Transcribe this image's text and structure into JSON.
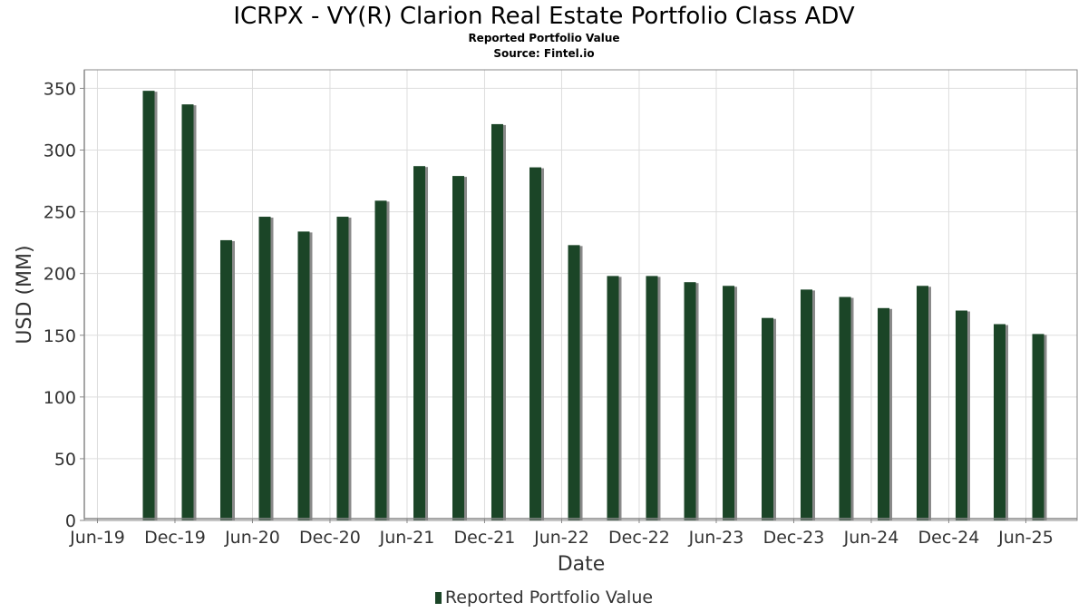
{
  "colors": {
    "bar": "#1b4527",
    "shadow": "#8a8a8a",
    "grid": "#dddddd",
    "axis": "#888888",
    "text": "#333333"
  },
  "chart_data": {
    "type": "bar",
    "title": "ICRPX - VY(R) Clarion Real Estate Portfolio Class ADV",
    "subtitle": "Reported Portfolio Value",
    "source": "Source: Fintel.io",
    "xlabel": "Date",
    "ylabel": "USD (MM)",
    "ylim": [
      0,
      365
    ],
    "yticks": [
      0,
      50,
      100,
      150,
      200,
      250,
      300,
      350
    ],
    "grid": true,
    "legend_position": "bottom-center",
    "xlim": [
      "2019-05-01",
      "2025-09-30"
    ],
    "xticks": [
      {
        "date": "2019-06-01",
        "label": "Jun-19"
      },
      {
        "date": "2019-12-01",
        "label": "Dec-19"
      },
      {
        "date": "2020-06-01",
        "label": "Jun-20"
      },
      {
        "date": "2020-12-01",
        "label": "Dec-20"
      },
      {
        "date": "2021-06-01",
        "label": "Jun-21"
      },
      {
        "date": "2021-12-01",
        "label": "Dec-21"
      },
      {
        "date": "2022-06-01",
        "label": "Jun-22"
      },
      {
        "date": "2022-12-01",
        "label": "Dec-22"
      },
      {
        "date": "2023-06-01",
        "label": "Jun-23"
      },
      {
        "date": "2023-12-01",
        "label": "Dec-23"
      },
      {
        "date": "2024-06-01",
        "label": "Jun-24"
      },
      {
        "date": "2024-12-01",
        "label": "Dec-24"
      },
      {
        "date": "2025-06-01",
        "label": "Jun-25"
      }
    ],
    "series": [
      {
        "name": "Reported Portfolio Value",
        "x": [
          "2019-09-30",
          "2019-12-31",
          "2020-03-31",
          "2020-06-30",
          "2020-09-30",
          "2020-12-31",
          "2021-03-31",
          "2021-06-30",
          "2021-09-30",
          "2021-12-31",
          "2022-03-31",
          "2022-06-30",
          "2022-09-30",
          "2022-12-31",
          "2023-03-31",
          "2023-06-30",
          "2023-09-30",
          "2023-12-31",
          "2024-03-31",
          "2024-06-30",
          "2024-09-30",
          "2024-12-31",
          "2025-03-31",
          "2025-06-30"
        ],
        "values": [
          348,
          337,
          227,
          246,
          234,
          246,
          259,
          287,
          279,
          321,
          286,
          223,
          198,
          198,
          193,
          190,
          164,
          187,
          181,
          172,
          190,
          170,
          159,
          151
        ]
      }
    ]
  }
}
